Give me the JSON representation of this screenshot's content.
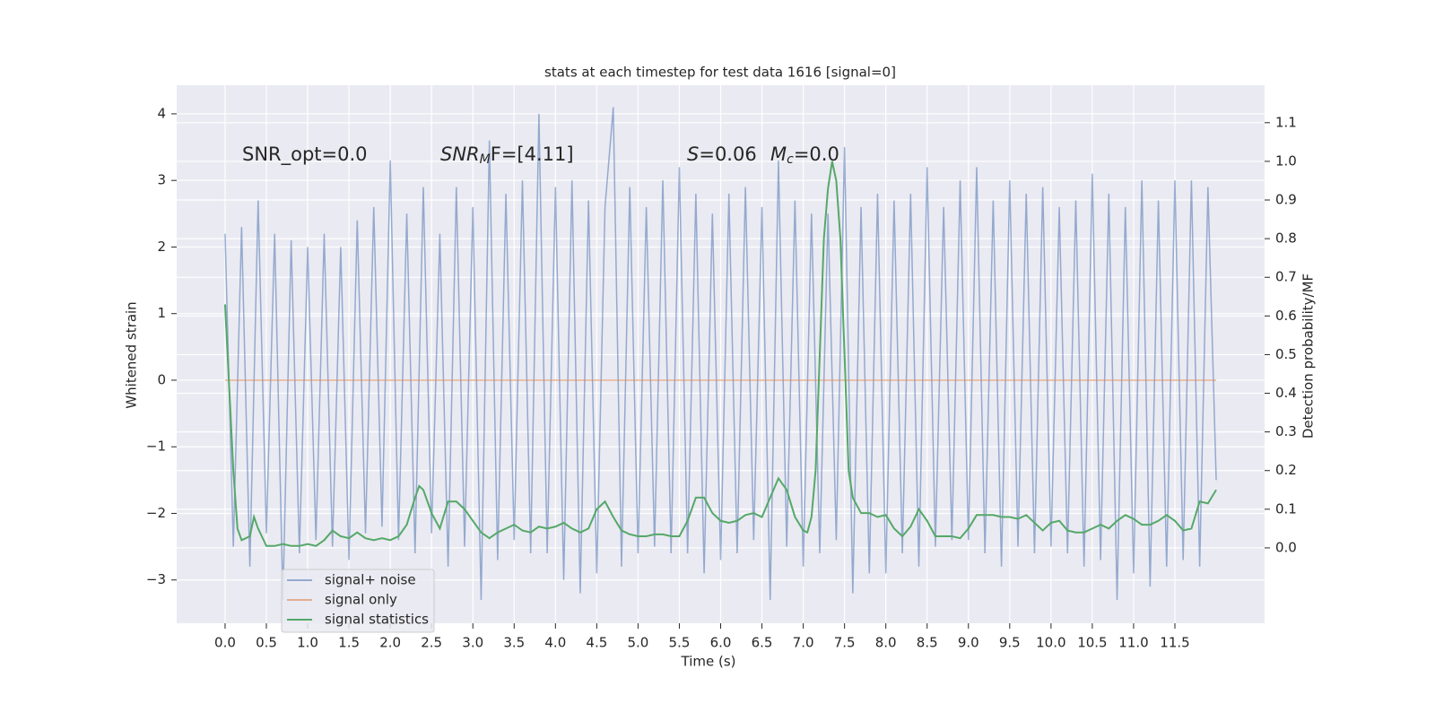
{
  "chart_data": {
    "type": "line",
    "title": "stats at each timestep for test data 1616 [signal=0]",
    "xlabel": "Time (s)",
    "ylabel": "Whitened strain",
    "y2label": "Detection probability/MF",
    "xlim": [
      -0.586,
      12.586
    ],
    "ylim": [
      -3.65,
      4.43
    ],
    "y2lim": [
      -0.195,
      1.197
    ],
    "xticks": [
      {
        "value": 0,
        "label": "0.0"
      },
      {
        "value": 0.5,
        "label": "0.5"
      },
      {
        "value": 1,
        "label": "1.0"
      },
      {
        "value": 1.5,
        "label": "1.5"
      },
      {
        "value": 2,
        "label": "2.0"
      },
      {
        "value": 2.5,
        "label": "2.5"
      },
      {
        "value": 3,
        "label": "3.0"
      },
      {
        "value": 3.5,
        "label": "3.5"
      },
      {
        "value": 4,
        "label": "4.0"
      },
      {
        "value": 4.5,
        "label": "4.5"
      },
      {
        "value": 5,
        "label": "5.0"
      },
      {
        "value": 5.5,
        "label": "5.5"
      },
      {
        "value": 6,
        "label": "6.0"
      },
      {
        "value": 6.5,
        "label": "6.5"
      },
      {
        "value": 7,
        "label": "7.0"
      },
      {
        "value": 7.5,
        "label": "7.5"
      },
      {
        "value": 8,
        "label": "8.0"
      },
      {
        "value": 8.5,
        "label": "8.5"
      },
      {
        "value": 9,
        "label": "9.0"
      },
      {
        "value": 9.5,
        "label": "9.5"
      },
      {
        "value": 10,
        "label": "10.0"
      },
      {
        "value": 10.5,
        "label": "10.5"
      },
      {
        "value": 11,
        "label": "11.0"
      },
      {
        "value": 11.5,
        "label": "11.5"
      }
    ],
    "yticks": [
      {
        "value": -3,
        "label": "−3"
      },
      {
        "value": -2,
        "label": "−2"
      },
      {
        "value": -1,
        "label": "−1"
      },
      0,
      1,
      2,
      3,
      4
    ],
    "y2ticks": [
      {
        "value": 0,
        "label": "0.0"
      },
      {
        "value": 0.1,
        "label": "0.1"
      },
      {
        "value": 0.2,
        "label": "0.2"
      },
      {
        "value": 0.3,
        "label": "0.3"
      },
      {
        "value": 0.4,
        "label": "0.4"
      },
      {
        "value": 0.5,
        "label": "0.5"
      },
      {
        "value": 0.6,
        "label": "0.6"
      },
      {
        "value": 0.7,
        "label": "0.7"
      },
      {
        "value": 0.8,
        "label": "0.8"
      },
      {
        "value": 0.9,
        "label": "0.9"
      },
      {
        "value": 1,
        "label": "1.0"
      },
      {
        "value": 1.1,
        "label": "1.1"
      }
    ],
    "grid": true,
    "legend": "lower left",
    "annotations": [
      {
        "text": "SNR_opt=0.0"
      },
      {
        "italic": "SNR",
        "sub": "M",
        "text": "F=[4.11]"
      },
      {
        "italic": "S",
        "text": "=0.06"
      },
      {
        "italic": "M",
        "sub": "c",
        "text": "=0.0"
      }
    ],
    "series": [
      {
        "name": "signal+ noise",
        "color": "#4c72b0",
        "opacity": 0.55,
        "x": [
          0,
          0.1,
          0.2,
          0.3,
          0.4,
          0.5,
          0.6,
          0.7,
          0.8,
          0.9,
          1,
          1.1,
          1.2,
          1.3,
          1.4,
          1.5,
          1.6,
          1.7,
          1.8,
          1.9,
          2,
          2.1,
          2.2,
          2.3,
          2.4,
          2.5,
          2.6,
          2.7,
          2.8,
          2.9,
          3,
          3.1,
          3.2,
          3.3,
          3.4,
          3.5,
          3.6,
          3.7,
          3.8,
          3.9,
          4,
          4.1,
          4.2,
          4.3,
          4.4,
          4.5,
          4.6,
          4.7,
          4.8,
          4.9,
          5,
          5.1,
          5.2,
          5.3,
          5.4,
          5.5,
          5.6,
          5.7,
          5.8,
          5.9,
          6,
          6.1,
          6.2,
          6.3,
          6.4,
          6.5,
          6.6,
          6.7,
          6.8,
          6.9,
          7,
          7.1,
          7.2,
          7.3,
          7.4,
          7.5,
          7.6,
          7.7,
          7.8,
          7.9,
          8,
          8.1,
          8.2,
          8.3,
          8.4,
          8.5,
          8.6,
          8.7,
          8.8,
          8.9,
          9,
          9.1,
          9.2,
          9.3,
          9.4,
          9.5,
          9.6,
          9.7,
          9.8,
          9.9,
          10,
          10.1,
          10.2,
          10.3,
          10.4,
          10.5,
          10.6,
          10.7,
          10.8,
          10.9,
          11,
          11.1,
          11.2,
          11.3,
          11.4,
          11.5,
          11.6,
          11.7,
          11.8,
          11.9,
          12
        ],
        "values": [
          2.2,
          -2.5,
          2.3,
          -2.8,
          2.7,
          -2.3,
          2.2,
          -3.3,
          2.1,
          -2.6,
          2.0,
          -2.4,
          2.2,
          -2.5,
          2.0,
          -2.7,
          2.4,
          -2.3,
          2.6,
          -2.2,
          3.3,
          -2.4,
          2.5,
          -2.6,
          2.9,
          -2.3,
          2.2,
          -2.8,
          2.9,
          -2.5,
          2.6,
          -3.3,
          3.6,
          -2.7,
          2.8,
          -2.4,
          3.0,
          -2.6,
          4.0,
          -2.6,
          2.9,
          -3.0,
          3.0,
          -3.2,
          2.7,
          -2.9,
          2.6,
          4.1,
          -2.8,
          2.9,
          -2.6,
          2.6,
          -2.5,
          3.0,
          -2.6,
          3.2,
          -2.6,
          2.8,
          -2.9,
          2.5,
          -2.7,
          2.8,
          -2.6,
          2.9,
          -2.4,
          2.6,
          -3.3,
          3.3,
          -2.5,
          2.7,
          -2.8,
          2.5,
          -2.6,
          2.5,
          -2.4,
          3.5,
          -3.2,
          2.6,
          -2.9,
          2.8,
          -2.9,
          2.7,
          -2.6,
          2.8,
          -2.8,
          3.2,
          -2.5,
          2.6,
          -2.4,
          3.0,
          -2.4,
          3.2,
          -2.6,
          2.7,
          -2.8,
          3.0,
          -2.5,
          2.8,
          -2.6,
          2.9,
          -2.5,
          2.6,
          -2.6,
          2.7,
          -2.8,
          3.1,
          -2.7,
          2.8,
          -3.3,
          2.6,
          -2.9,
          3.0,
          -3.1,
          2.7,
          -2.8,
          3.0,
          -2.7,
          3.0,
          -2.8,
          2.9,
          -1.5
        ]
      },
      {
        "name": "signal only",
        "color": "#dd8452",
        "opacity": 0.6,
        "x": [
          0,
          12
        ],
        "values": [
          0,
          0
        ]
      },
      {
        "name": "signal statistics",
        "color": "#55a868",
        "opacity": 1,
        "axis": "y2",
        "x": [
          0,
          0.1,
          0.15,
          0.2,
          0.3,
          0.35,
          0.4,
          0.5,
          0.6,
          0.7,
          0.8,
          0.9,
          1,
          1.1,
          1.2,
          1.3,
          1.4,
          1.5,
          1.6,
          1.7,
          1.8,
          1.9,
          2,
          2.1,
          2.2,
          2.3,
          2.35,
          2.4,
          2.5,
          2.6,
          2.7,
          2.8,
          2.9,
          3,
          3.1,
          3.2,
          3.3,
          3.4,
          3.5,
          3.6,
          3.7,
          3.8,
          3.9,
          4,
          4.1,
          4.2,
          4.3,
          4.4,
          4.5,
          4.6,
          4.7,
          4.8,
          4.9,
          5,
          5.1,
          5.2,
          5.3,
          5.4,
          5.5,
          5.6,
          5.7,
          5.8,
          5.9,
          6,
          6.1,
          6.2,
          6.3,
          6.4,
          6.5,
          6.6,
          6.7,
          6.8,
          6.9,
          7,
          7.05,
          7.1,
          7.15,
          7.2,
          7.25,
          7.3,
          7.35,
          7.4,
          7.45,
          7.5,
          7.55,
          7.6,
          7.7,
          7.8,
          7.9,
          8,
          8.1,
          8.2,
          8.3,
          8.4,
          8.5,
          8.6,
          8.7,
          8.8,
          8.9,
          9,
          9.1,
          9.2,
          9.3,
          9.4,
          9.5,
          9.6,
          9.7,
          9.8,
          9.9,
          10,
          10.1,
          10.2,
          10.3,
          10.4,
          10.5,
          10.6,
          10.7,
          10.8,
          10.9,
          11,
          11.1,
          11.2,
          11.3,
          11.4,
          11.5,
          11.6,
          11.7,
          11.8,
          11.9,
          12
        ],
        "values": [
          0.63,
          0.2,
          0.05,
          0.02,
          0.03,
          0.08,
          0.05,
          0.005,
          0.005,
          0.01,
          0.005,
          0.005,
          0.01,
          0.005,
          0.02,
          0.045,
          0.03,
          0.025,
          0.04,
          0.025,
          0.02,
          0.025,
          0.02,
          0.03,
          0.06,
          0.13,
          0.16,
          0.15,
          0.09,
          0.05,
          0.12,
          0.12,
          0.1,
          0.07,
          0.04,
          0.025,
          0.04,
          0.05,
          0.06,
          0.045,
          0.04,
          0.055,
          0.05,
          0.055,
          0.065,
          0.05,
          0.04,
          0.05,
          0.1,
          0.12,
          0.08,
          0.045,
          0.035,
          0.03,
          0.03,
          0.035,
          0.035,
          0.03,
          0.03,
          0.07,
          0.13,
          0.13,
          0.09,
          0.07,
          0.065,
          0.07,
          0.085,
          0.09,
          0.08,
          0.13,
          0.18,
          0.15,
          0.08,
          0.045,
          0.04,
          0.08,
          0.2,
          0.5,
          0.8,
          0.93,
          1.0,
          0.95,
          0.8,
          0.5,
          0.2,
          0.13,
          0.09,
          0.09,
          0.08,
          0.085,
          0.05,
          0.03,
          0.055,
          0.1,
          0.07,
          0.03,
          0.03,
          0.03,
          0.025,
          0.05,
          0.085,
          0.085,
          0.085,
          0.08,
          0.08,
          0.075,
          0.085,
          0.065,
          0.045,
          0.065,
          0.07,
          0.045,
          0.04,
          0.04,
          0.05,
          0.06,
          0.05,
          0.07,
          0.085,
          0.075,
          0.06,
          0.06,
          0.07,
          0.085,
          0.07,
          0.045,
          0.05,
          0.12,
          0.115,
          0.15
        ]
      }
    ]
  }
}
